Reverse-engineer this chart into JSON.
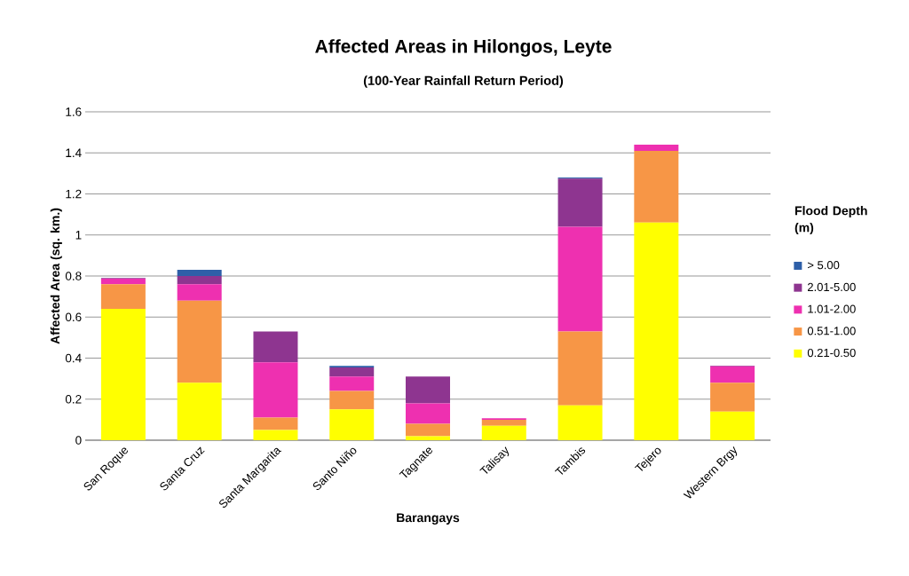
{
  "chart_data": {
    "type": "bar",
    "stacked": true,
    "title": "Affected Areas in Hilongos,  Leyte",
    "subtitle": "(100-Year Rainfall Return Period)",
    "xlabel": "Barangays",
    "ylabel": "Affected Area (sq. km.)",
    "legend_title": "Flood Depth (m)",
    "categories": [
      "San Roque",
      "Santa Cruz",
      "Santa Margarita",
      "Santo Niño",
      "Tagnate",
      "Talisay",
      "Tambis",
      "Tejero",
      "Western Brgy"
    ],
    "series": [
      {
        "name": "0.21-0.50",
        "color": "#ffff00",
        "values": [
          0.64,
          0.28,
          0.05,
          0.15,
          0.02,
          0.07,
          0.17,
          1.06,
          0.14
        ]
      },
      {
        "name": "0.51-1.00",
        "color": "#f79646",
        "values": [
          0.12,
          0.4,
          0.06,
          0.09,
          0.06,
          0.03,
          0.36,
          0.35,
          0.14
        ]
      },
      {
        "name": "1.01-2.00",
        "color": "#ee30b0",
        "values": [
          0.027,
          0.08,
          0.27,
          0.07,
          0.1,
          0.007,
          0.51,
          0.03,
          0.08
        ]
      },
      {
        "name": "2.01-5.00",
        "color": "#8e3590",
        "values": [
          0.003,
          0.04,
          0.15,
          0.045,
          0.13,
          0,
          0.235,
          0,
          0.003
        ]
      },
      {
        "name": "> 5.00",
        "color": "#2e5fa8",
        "values": [
          0,
          0.03,
          0,
          0.007,
          0,
          0,
          0.005,
          0,
          0
        ]
      }
    ],
    "ylim": [
      0,
      1.6
    ],
    "yticks": [
      0,
      0.2,
      0.4,
      0.6,
      0.8,
      1,
      1.2,
      1.4,
      1.6
    ],
    "grid": "y",
    "legend": "right"
  }
}
